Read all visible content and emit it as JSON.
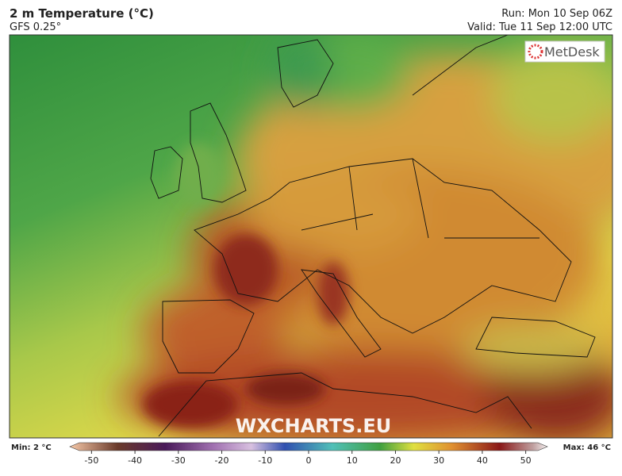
{
  "header": {
    "title": "2 m Temperature (°C)",
    "subtitle": "GFS 0.25°",
    "run": "Run: Mon 10 Sep 06Z",
    "valid": "Valid: Tue 11 Sep 12:00 UTC"
  },
  "logo": "MetDesk",
  "watermark": "WXCHARTS.EU",
  "colorbar": {
    "min_label": "Min: 2 °C",
    "max_label": "Max: 46 °C",
    "lim": [
      -55,
      55
    ],
    "ticks": [
      -50,
      -40,
      -30,
      -20,
      -10,
      0,
      10,
      20,
      30,
      40,
      50
    ]
  }
}
